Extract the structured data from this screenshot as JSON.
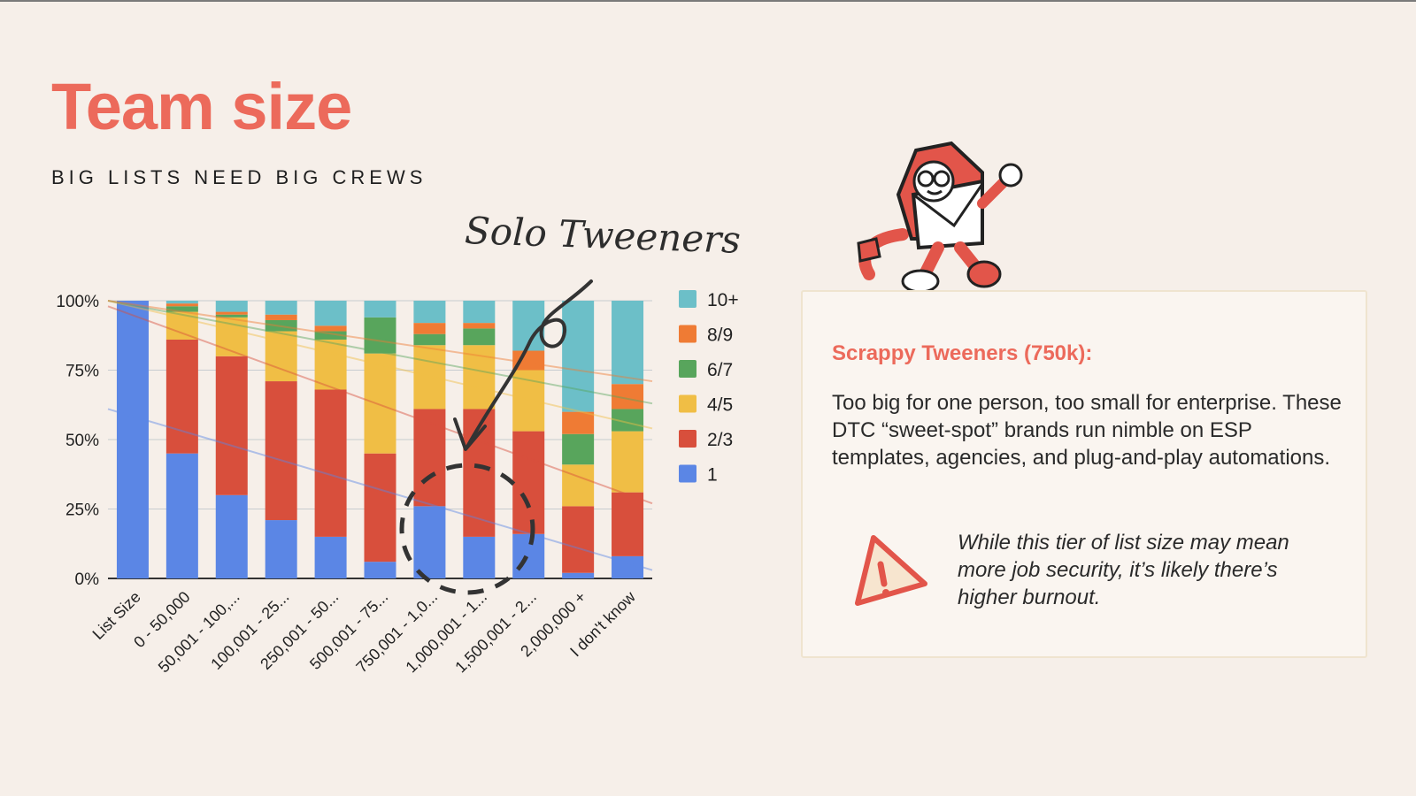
{
  "slide": {
    "title": "Team size",
    "subtitle": "BIG LISTS NEED BIG CREWS",
    "annotation": "Solo Tweeners"
  },
  "card": {
    "heading": "Scrappy Tweeners (750k):",
    "body": "Too big for one person, too small for enterprise. These DTC “sweet-spot” brands run nimble on ESP templates, agencies, and plug-and-play automations.",
    "note": "While this tier of list size may mean more job security, it’s likely there’s higher burnout."
  },
  "chart_data": {
    "type": "bar",
    "stacked": true,
    "categories": [
      "List Size",
      "0 - 50,000",
      "50,001 - 100,...",
      "100,001 - 25...",
      "250,001 - 50...",
      "500,001 - 75...",
      "750,001 - 1,0...",
      "1,000,001 - 1...",
      "1,500,001 - 2...",
      "2,000,000 +",
      "I don't know"
    ],
    "ylim": [
      0,
      100
    ],
    "yticks": [
      "0%",
      "25%",
      "50%",
      "75%",
      "100%"
    ],
    "legend_position": "right",
    "trendlines": true,
    "series": [
      {
        "name": "1",
        "color": "#5b86e5",
        "values": [
          100,
          45,
          30,
          21,
          15,
          6,
          26,
          15,
          16,
          2,
          8
        ]
      },
      {
        "name": "2/3",
        "color": "#d84f3c",
        "values": [
          0,
          41,
          50,
          50,
          53,
          39,
          35,
          46,
          37,
          24,
          23
        ]
      },
      {
        "name": "4/5",
        "color": "#f0be45",
        "values": [
          0,
          10,
          14,
          18,
          18,
          36,
          23,
          23,
          22,
          15,
          22
        ]
      },
      {
        "name": "6/7",
        "color": "#58a55c",
        "values": [
          0,
          2,
          1,
          4,
          3,
          13,
          4,
          6,
          0,
          11,
          8
        ]
      },
      {
        "name": "8/9",
        "color": "#ef7b34",
        "values": [
          0,
          1,
          1,
          2,
          2,
          0,
          4,
          2,
          7,
          8,
          9
        ]
      },
      {
        "name": "10+",
        "color": "#6cbfc8",
        "values": [
          0,
          1,
          4,
          5,
          9,
          6,
          8,
          8,
          18,
          40,
          30
        ]
      }
    ],
    "trend_values": {
      "1": [
        61,
        3
      ],
      "2/3": [
        98,
        27
      ],
      "4/5": [
        100,
        54
      ],
      "6/7": [
        100,
        63
      ],
      "8/9": [
        100,
        71
      ]
    }
  },
  "colors": {
    "accent": "#ec6a5b",
    "background": "#f6efe9",
    "card_background": "#faf5f0"
  }
}
